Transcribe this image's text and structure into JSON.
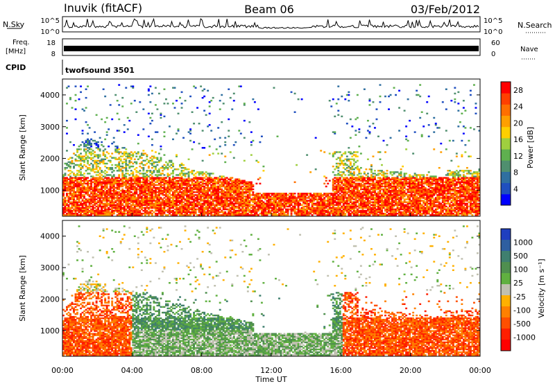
{
  "header": {
    "station": "Inuvik (fitACF)",
    "beam": "Beam 06",
    "date": "03/Feb/2012"
  },
  "strip_panels": {
    "nsky": {
      "label": "N.Sky",
      "right_label": "N.Search",
      "left_ticks": [
        "10^5",
        "10^0"
      ],
      "right_ticks": [
        "10^5",
        "10^0"
      ]
    },
    "freq": {
      "label_line1": "Freq.",
      "label_line2": "[MHz]",
      "right_label": "Nave",
      "left_ticks": [
        "18",
        "8"
      ],
      "right_ticks": [
        "60",
        "0"
      ]
    },
    "cpid": {
      "label": "CPID",
      "text": "twofsound 3501"
    }
  },
  "colors": {
    "power_scale": [
      "#0000ff",
      "#1f4fbf",
      "#2f6fa0",
      "#4f8f6f",
      "#5fb04f",
      "#9fcf3f",
      "#ffcf00",
      "#ff9f00",
      "#ff6f00",
      "#ff3f00",
      "#ff0000"
    ],
    "velocity_scale": [
      "#1f3fbf",
      "#2f5fa0",
      "#3f7f6f",
      "#4f8f4f",
      "#60b040",
      "#c0c0b0",
      "#ffb000",
      "#ff8000",
      "#ff4f00",
      "#ff1f00",
      "#ff0000"
    ]
  },
  "chart_data": [
    {
      "type": "heatmap",
      "name": "power",
      "ylabel": "Slant Range [km]",
      "xlabel": "Time UT",
      "x_ticks": [
        "00:00",
        "04:00",
        "08:00",
        "12:00",
        "16:00",
        "20:00",
        "00:00"
      ],
      "xlim_hours": [
        0,
        24
      ],
      "ylim": [
        180,
        4500
      ],
      "y_ticks": [
        1000,
        2000,
        3000,
        4000
      ],
      "colorbar": {
        "label": "Power [dB]",
        "ticks": [
          4,
          8,
          12,
          16,
          20,
          24,
          28
        ],
        "range": [
          0,
          30
        ]
      }
    },
    {
      "type": "heatmap",
      "name": "velocity",
      "ylabel": "Slant Range [km]",
      "xlabel": "Time UT",
      "x_ticks": [
        "00:00",
        "04:00",
        "08:00",
        "12:00",
        "16:00",
        "20:00",
        "00:00"
      ],
      "xlim_hours": [
        0,
        24
      ],
      "ylim": [
        180,
        4500
      ],
      "y_ticks": [
        1000,
        2000,
        3000,
        4000
      ],
      "colorbar": {
        "label": "Velocity [m s⁻¹]",
        "ticks": [
          1000,
          500,
          100,
          25,
          -25,
          -100,
          -500,
          -1000
        ]
      }
    }
  ]
}
